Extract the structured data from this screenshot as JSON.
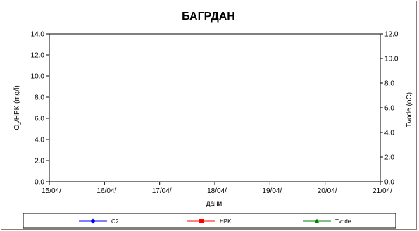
{
  "chart_data": {
    "type": "line",
    "title": "БАГРДАН",
    "xlabel": "дани",
    "ylabel_left_main": "O",
    "ylabel_left_sub": "2",
    "ylabel_left_rest": "/HPK (mg/l)",
    "ylabel_right": "Tvode (oC)",
    "x_ticks": [
      "15/04/",
      "16/04/",
      "17/04/",
      "18/04/",
      "19/04/",
      "20/04/",
      "21/04/"
    ],
    "ylim_left": [
      0,
      14
    ],
    "y_ticks_left": [
      "0.0",
      "2.0",
      "4.0",
      "6.0",
      "8.0",
      "10.0",
      "12.0",
      "14.0"
    ],
    "ylim_right": [
      0,
      12
    ],
    "y_ticks_right": [
      "0.0",
      "2.0",
      "4.0",
      "6.0",
      "8.0",
      "10.0",
      "12.0"
    ],
    "grid": false,
    "legend_position": "bottom",
    "series": [
      {
        "name": "O2",
        "color": "#0000ff",
        "marker": "diamond",
        "values": []
      },
      {
        "name": "HPK",
        "color": "#ff0000",
        "marker": "square",
        "values": []
      },
      {
        "name": "Tvode",
        "color": "#008000",
        "marker": "triangle",
        "values": []
      }
    ]
  }
}
